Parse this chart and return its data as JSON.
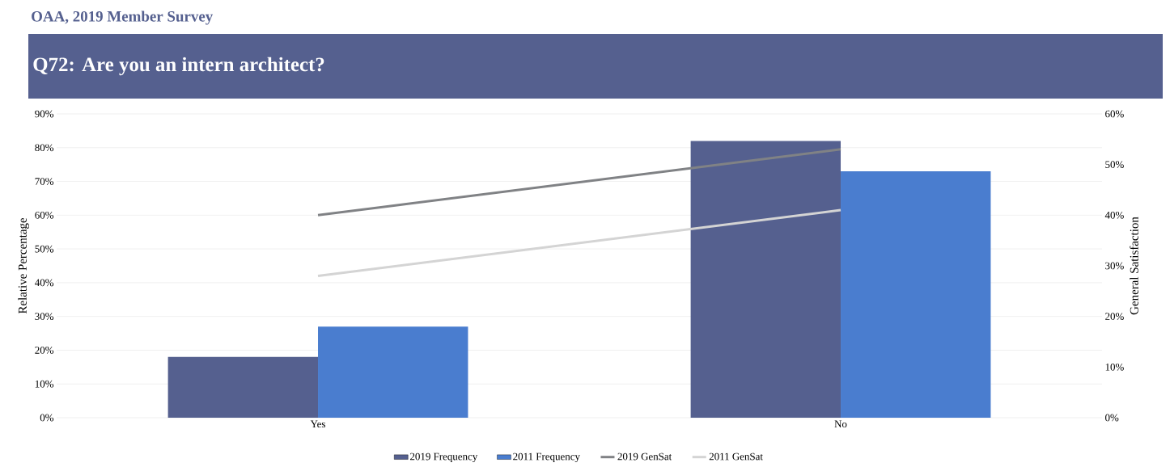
{
  "chart_data": {
    "type": "bar",
    "title": "OAA, 2019 Member Survey",
    "subtitle": "Q72: Are you an intern architect?",
    "ylabel": "Relative Percentage",
    "y2label": "General Satisfaction",
    "categories": [
      "Yes",
      "No"
    ],
    "series": [
      {
        "name": "2019 Frequency",
        "color": "#55608f",
        "values": [
          18,
          82
        ]
      },
      {
        "name": "2011 Frequency",
        "color": "#4a7dcf",
        "values": [
          27,
          73
        ]
      },
      {
        "name": "2019 GenSat",
        "type": "line",
        "axis": "y2",
        "color": "#808285",
        "values": [
          40,
          53
        ]
      },
      {
        "name": "2011 GenSat",
        "type": "line",
        "axis": "y2",
        "color": "#d4d4d4",
        "values": [
          28,
          41
        ]
      }
    ],
    "ylim": [
      0,
      90
    ],
    "yticks": [
      {
        "value": 0,
        "label": "0%"
      },
      {
        "value": 10,
        "label": "10%"
      },
      {
        "value": 20,
        "label": "20%"
      },
      {
        "value": 30,
        "label": "30%"
      },
      {
        "value": 40,
        "label": "40%"
      },
      {
        "value": 50,
        "label": "50%"
      },
      {
        "value": 60,
        "label": "60%"
      },
      {
        "value": 70,
        "label": "70%"
      },
      {
        "value": 80,
        "label": "80%"
      },
      {
        "value": 90,
        "label": "90%"
      }
    ],
    "y2lim": [
      0,
      60
    ],
    "y2ticks": [
      {
        "value": 0,
        "label": "0%"
      },
      {
        "value": 10,
        "label": "10%"
      },
      {
        "value": 20,
        "label": "20%"
      },
      {
        "value": 30,
        "label": "30%"
      },
      {
        "value": 40,
        "label": "40%"
      },
      {
        "value": 50,
        "label": "50%"
      },
      {
        "value": 60,
        "label": "60%"
      }
    ],
    "grid": "y",
    "legend": "bottom"
  }
}
